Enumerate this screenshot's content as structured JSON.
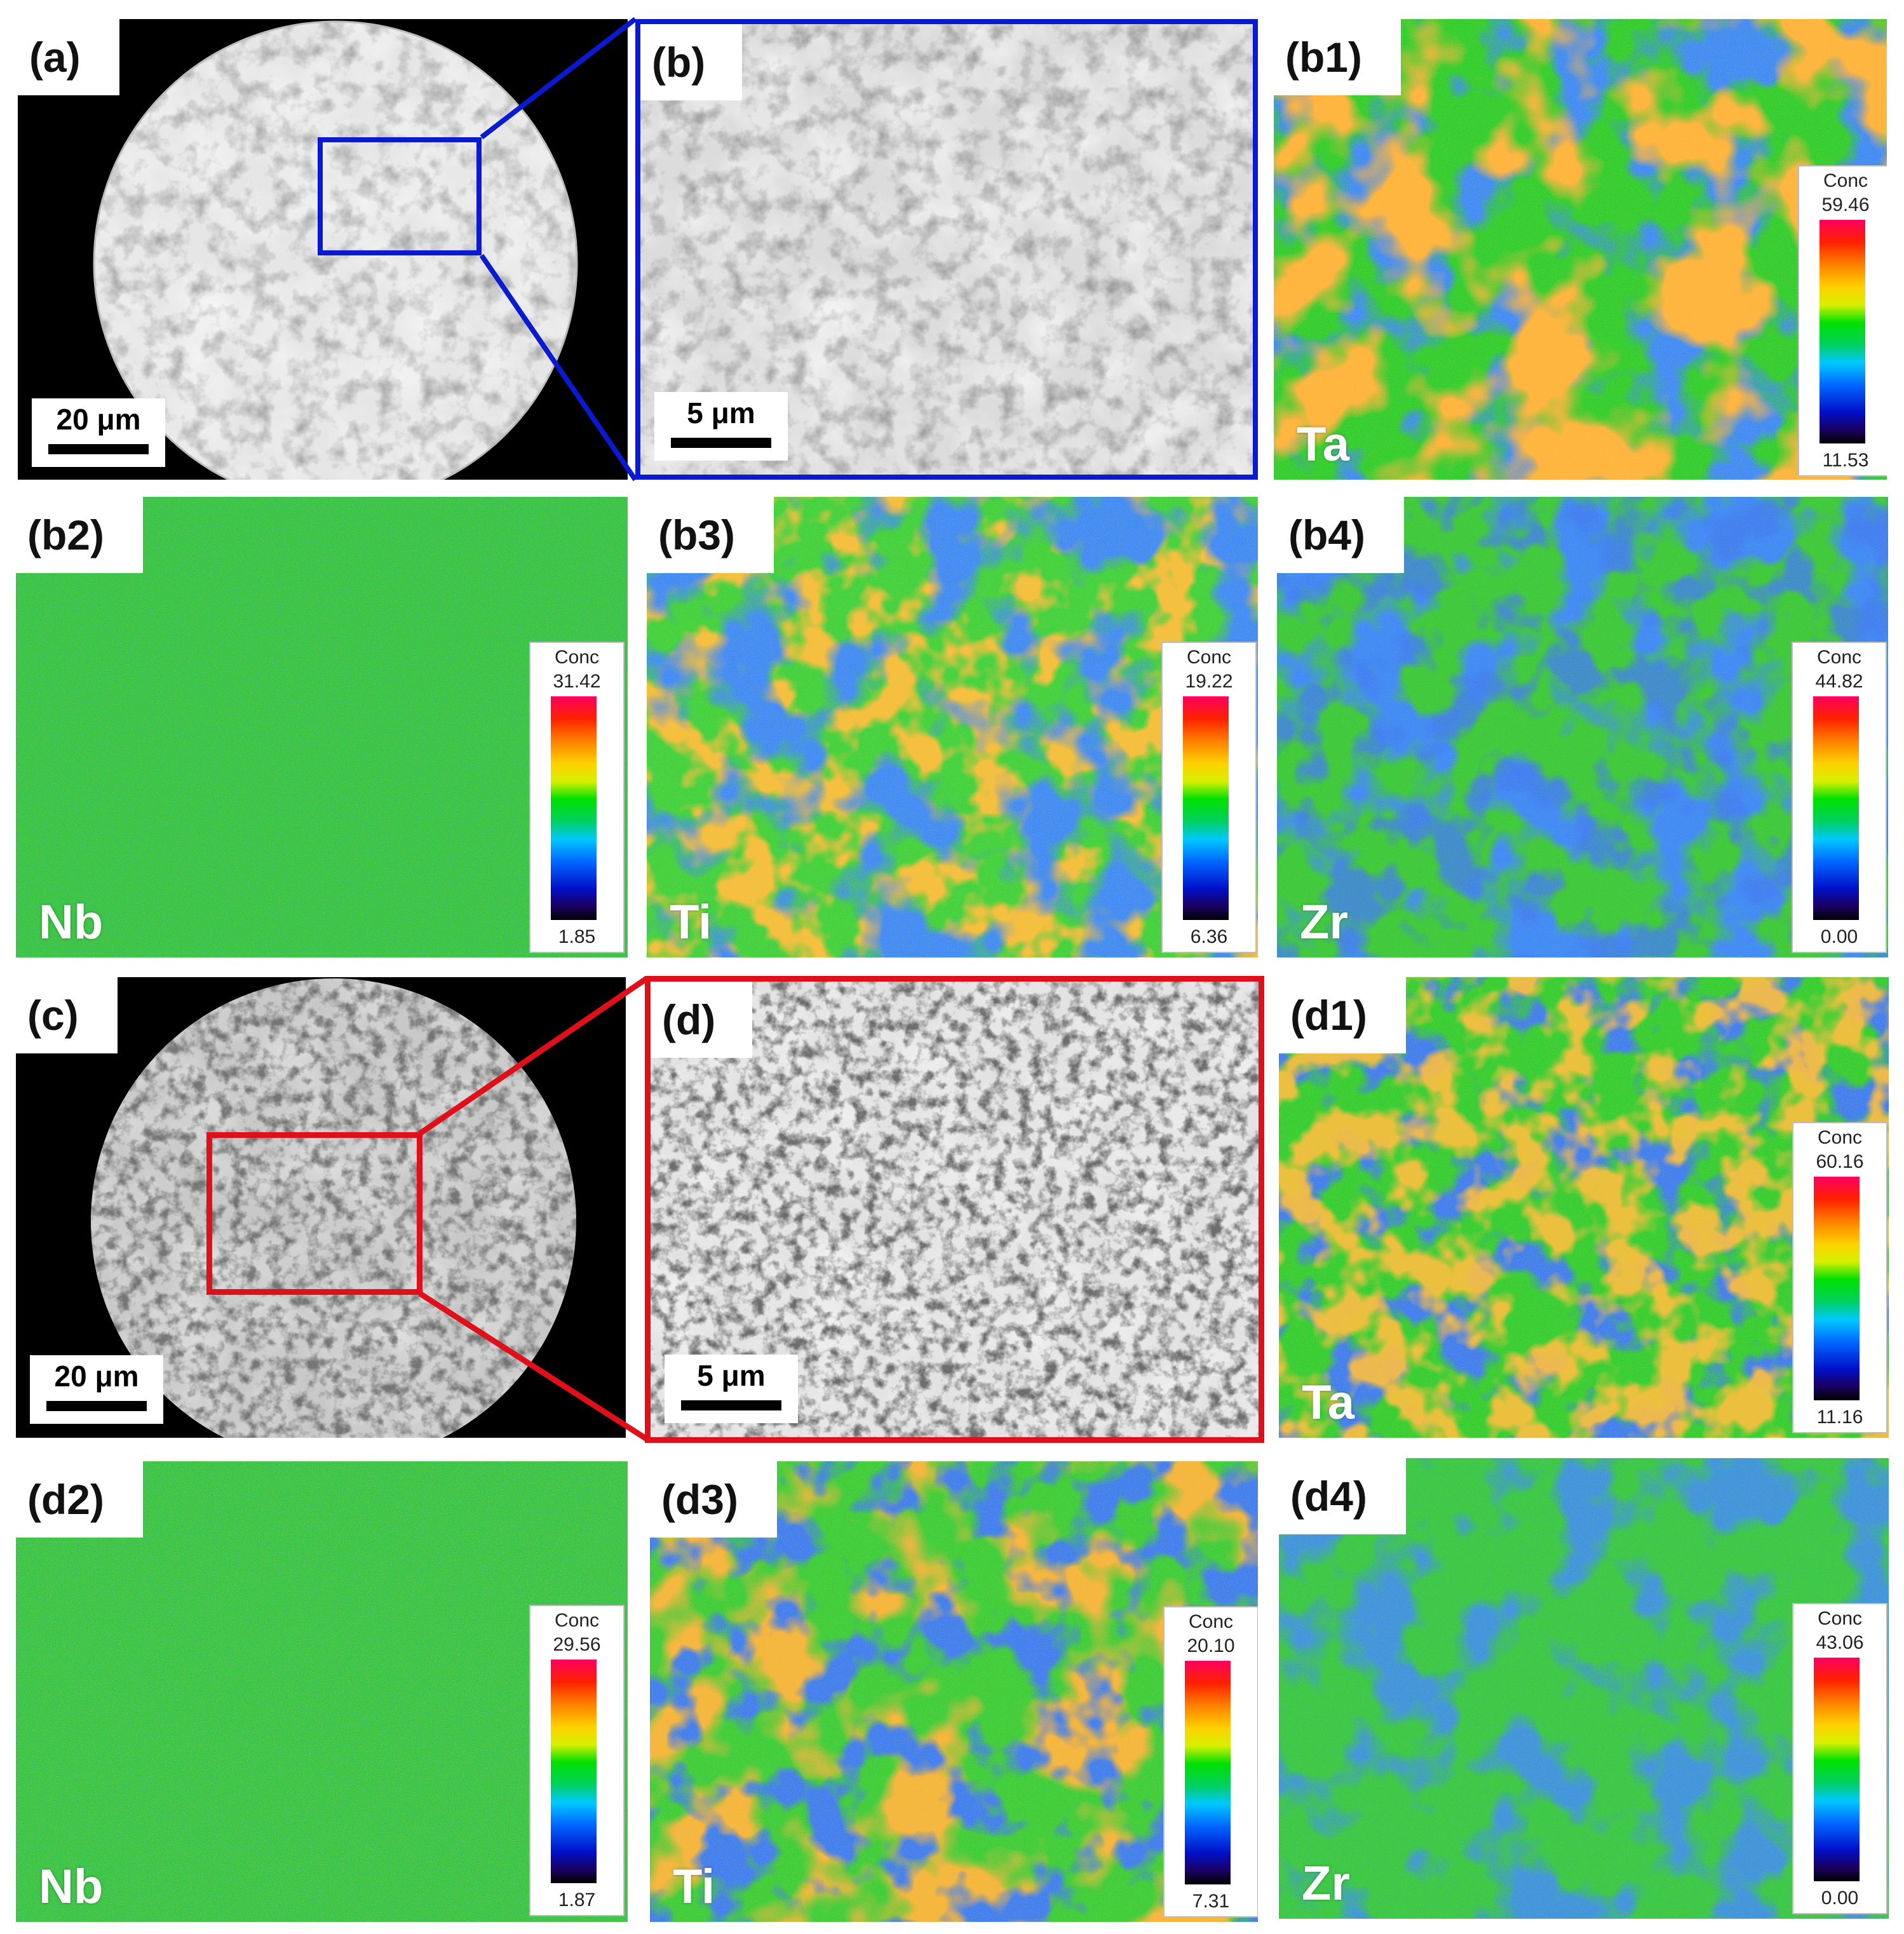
{
  "panels": {
    "a": {
      "label": "(a)",
      "scale": "20 μm"
    },
    "b": {
      "label": "(b)",
      "scale": "5 μm"
    },
    "b1": {
      "label": "(b1)",
      "element": "Ta",
      "conc_title": "Conc",
      "conc_max": "59.46",
      "conc_min": "11.53"
    },
    "b2": {
      "label": "(b2)",
      "element": "Nb",
      "conc_title": "Conc",
      "conc_max": "31.42",
      "conc_min": "1.85"
    },
    "b3": {
      "label": "(b3)",
      "element": "Ti",
      "conc_title": "Conc",
      "conc_max": "19.22",
      "conc_min": "6.36"
    },
    "b4": {
      "label": "(b4)",
      "element": "Zr",
      "conc_title": "Conc",
      "conc_max": "44.82",
      "conc_min": "0.00"
    },
    "c": {
      "label": "(c)",
      "scale": "20 μm"
    },
    "d": {
      "label": "(d)",
      "scale": "5 μm"
    },
    "d1": {
      "label": "(d1)",
      "element": "Ta",
      "conc_title": "Conc",
      "conc_max": "60.16",
      "conc_min": "11.16"
    },
    "d2": {
      "label": "(d2)",
      "element": "Nb",
      "conc_title": "Conc",
      "conc_max": "29.56",
      "conc_min": "1.87"
    },
    "d3": {
      "label": "(d3)",
      "element": "Ti",
      "conc_title": "Conc",
      "conc_max": "20.10",
      "conc_min": "7.31"
    },
    "d4": {
      "label": "(d4)",
      "element": "Zr",
      "conc_title": "Conc",
      "conc_max": "43.06",
      "conc_min": "0.00"
    }
  },
  "colors": {
    "blue_box": "#0a1ad0",
    "red_box": "#e0101a",
    "map_base": "#33cc33"
  }
}
